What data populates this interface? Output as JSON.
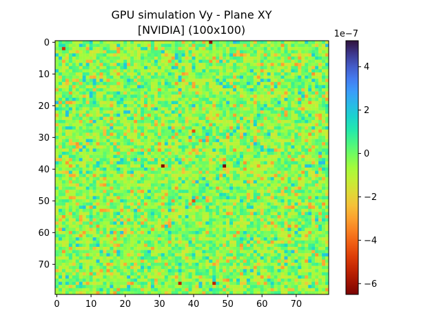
{
  "chart_data": {
    "type": "heatmap",
    "title_line1": "GPU simulation Vy - Plane XY",
    "title_line2": "[NVIDIA] (100x100)",
    "xlabel": "",
    "ylabel": "",
    "grid_cols": 80,
    "grid_rows": 80,
    "x_ticks": [
      0,
      10,
      20,
      30,
      40,
      50,
      60,
      70
    ],
    "y_ticks": [
      0,
      10,
      20,
      30,
      40,
      50,
      60,
      70
    ],
    "x_range": [
      -0.5,
      79.5
    ],
    "y_range": [
      -0.5,
      79.5
    ],
    "colormap": "turbo",
    "vmin": -6.5,
    "vmax": 5.2,
    "colorbar_ticks": [
      -6,
      -4,
      -2,
      0,
      2,
      4
    ],
    "colorbar_tick_labels": [
      "−6",
      "−4",
      "−2",
      "0",
      "2",
      "4"
    ],
    "colorbar_exponent": "1e−7",
    "typical_value_range": [
      -1.5,
      0.8
    ],
    "extreme_cells": [
      {
        "x": 31,
        "y": 39,
        "value": -6.5
      },
      {
        "x": 49,
        "y": 39,
        "value": -6.5
      },
      {
        "x": 45,
        "y": 0,
        "value": -6.0
      },
      {
        "x": 36,
        "y": 76,
        "value": -5.5
      },
      {
        "x": 46,
        "y": 76,
        "value": -5.5
      },
      {
        "x": 2,
        "y": 2,
        "value": -5.0
      },
      {
        "x": 40,
        "y": 28,
        "value": -4.5
      },
      {
        "x": 40,
        "y": 50,
        "value": -4.5
      }
    ]
  }
}
